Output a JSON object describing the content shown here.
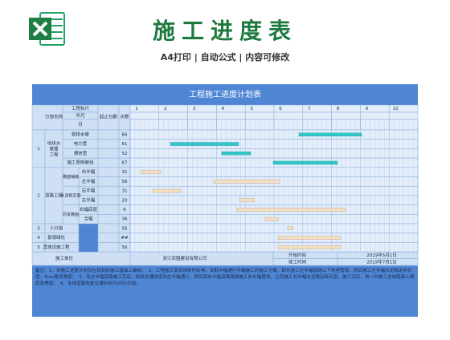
{
  "header": {
    "title": "施工进度表",
    "subtitle": "A4打印 | 自动公式 | 内容可修改"
  },
  "sheet": {
    "title": "工程施工进度计划表",
    "columns": {
      "section": "分部名称",
      "ruler": "工程标尺",
      "year_month": "年月",
      "month": "月",
      "dates": "起止日期",
      "days": "天数"
    },
    "scale": [
      "1",
      "2",
      "3",
      "4",
      "5",
      "6",
      "7",
      "8",
      "9",
      "10"
    ],
    "groups": [
      {
        "no": "1",
        "name": "地块水管理工程"
      },
      {
        "no": "2",
        "name": "道路工程"
      },
      {
        "no": "3",
        "name": "人行道"
      },
      {
        "no": "4",
        "name": "景观绿化"
      },
      {
        "no": "5",
        "name": "其他设施工程"
      }
    ],
    "subgroups": [
      "路面铺装",
      "水泥稳定层",
      "沥青路面"
    ],
    "rows": [
      {
        "item": "物排水管",
        "days": 66
      },
      {
        "item": "电力管",
        "days": 61
      },
      {
        "item": "通信管",
        "days": 52
      },
      {
        "item": "施工照明管线",
        "days": 67
      },
      {
        "item": "右半幅",
        "days": 31
      },
      {
        "item": "左半幅",
        "days": 56
      },
      {
        "item": "右半幅",
        "days": 31
      },
      {
        "item": "左半幅",
        "days": 20
      },
      {
        "item": "右幅底层",
        "days": 6
      },
      {
        "item": "全幅",
        "days": 36
      },
      {
        "days": 56
      },
      {
        "days": "##"
      },
      {
        "days": 56
      }
    ],
    "footer": {
      "unit_label": "施工单位",
      "unit": "浙江实围建设有限公司",
      "start_label": "开始时间",
      "start": "2019年5月1日",
      "end_label": "竣工时间",
      "end": "2019年7月1日"
    },
    "notes": "备注：1、本施工进度计划仅在现有的施工基础上编制；　2、工程施工受现场条件影响，采取半幅通行半幅施工的施工方案，即先施工左半幅道路以下地埋管线，然后施工左半幅水泥稳定碎石层，5cm厚沥青层；　3、待左半幅道路施工完后，即改交通改道到左半幅通行，然后转右半幅道路路面施工右半幅管线，之后施工右半幅水泥稳定碎石层，施工完后，再一并施工全线路面上面层沥青层；　4、全线道路恢复交通时间为9月5日前。"
  }
}
